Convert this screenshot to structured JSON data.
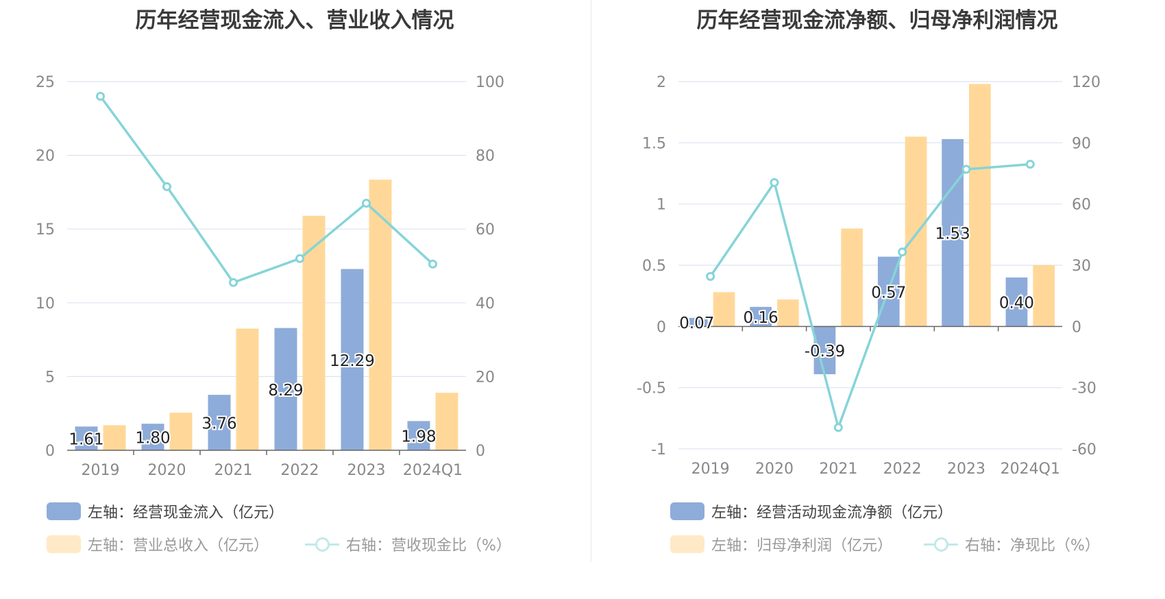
{
  "colors": {
    "bar1": "#8eacd9",
    "bar2": "#ffd899",
    "line": "#86d4d8",
    "grid": "#dde3f0",
    "axis": "#666666",
    "tick": "#888888"
  },
  "left": {
    "title": "历年经营现金流入、营业收入情况",
    "legend": {
      "s1": "左轴：经营现金流入（亿元）",
      "s2": "左轴：营业总收入（亿元）",
      "s3": "右轴：营收现金比（%）"
    }
  },
  "right": {
    "title": "历年经营现金流净额、归母净利润情况",
    "legend": {
      "s1": "左轴：经营活动现金流净额（亿元）",
      "s2": "左轴：归母净利润（亿元）",
      "s3": "右轴：净现比（%）"
    }
  },
  "chart_data": [
    {
      "type": "bar",
      "title": "历年经营现金流入、营业收入情况",
      "categories": [
        "2019",
        "2020",
        "2021",
        "2022",
        "2023",
        "2024Q1"
      ],
      "ylim_left": [
        0,
        25
      ],
      "yticks_left": [
        "0",
        "5",
        "10",
        "15",
        "20",
        "25"
      ],
      "ylim_right": [
        0,
        100
      ],
      "yticks_right": [
        "0",
        "20",
        "40",
        "60",
        "80",
        "100"
      ],
      "grid": true,
      "legend_position": "bottom-left",
      "series": [
        {
          "name": "左轴：经营现金流入（亿元）",
          "type": "bar",
          "axis": "left",
          "values": [
            1.61,
            1.8,
            3.76,
            8.29,
            12.29,
            1.98
          ],
          "labels": [
            "1.61",
            "1.80",
            "3.76",
            "8.29",
            "12.29",
            "1.98"
          ]
        },
        {
          "name": "左轴：营业总收入（亿元）",
          "type": "bar",
          "axis": "left",
          "values": [
            1.7,
            2.55,
            8.25,
            15.9,
            18.35,
            3.9
          ]
        },
        {
          "name": "右轴：营收现金比（%）",
          "type": "line",
          "axis": "right",
          "values": [
            96,
            71.5,
            45.5,
            52,
            67,
            50.5
          ]
        }
      ]
    },
    {
      "type": "bar",
      "title": "历年经营现金流净额、归母净利润情况",
      "categories": [
        "2019",
        "2020",
        "2021",
        "2022",
        "2023",
        "2024Q1"
      ],
      "ylim_left": [
        -1,
        2
      ],
      "yticks_left": [
        "-1",
        "-0.5",
        "0",
        "0.5",
        "1",
        "1.5",
        "2"
      ],
      "ylim_right": [
        -60,
        120
      ],
      "yticks_right": [
        "-60",
        "-30",
        "0",
        "30",
        "60",
        "90",
        "120"
      ],
      "grid": true,
      "legend_position": "bottom-left",
      "series": [
        {
          "name": "左轴：经营活动现金流净额（亿元）",
          "type": "bar",
          "axis": "left",
          "values": [
            0.07,
            0.16,
            -0.39,
            0.57,
            1.53,
            0.4
          ],
          "labels": [
            "0.07",
            "0.16",
            "-0.39",
            "0.57",
            "1.53",
            "0.40"
          ]
        },
        {
          "name": "左轴：归母净利润（亿元）",
          "type": "bar",
          "axis": "left",
          "values": [
            0.28,
            0.22,
            0.8,
            1.55,
            1.98,
            0.5
          ]
        },
        {
          "name": "右轴：净现比（%）",
          "type": "line",
          "axis": "right",
          "values": [
            24.5,
            70.5,
            -49.5,
            36.5,
            77,
            79.5
          ]
        }
      ]
    }
  ]
}
